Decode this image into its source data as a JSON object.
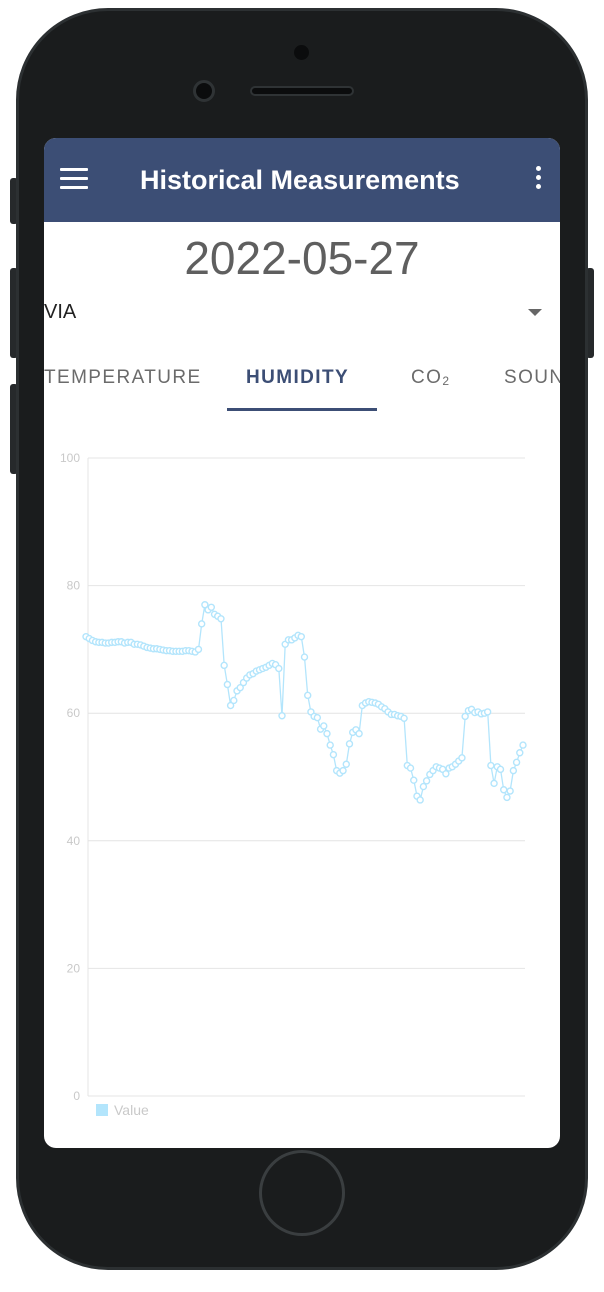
{
  "app": {
    "title": "Historical Measurements",
    "accent_color": "#3c4e75"
  },
  "toolbar": {
    "menu_icon": "hamburger-menu-icon",
    "more_icon": "more-vertical-icon"
  },
  "date": "2022-05-27",
  "location_select": {
    "value": "VIA",
    "icon": "dropdown-arrow-icon"
  },
  "tabs": [
    {
      "label": "TEMPERATURE",
      "active": false
    },
    {
      "label": "HUMIDITY",
      "active": true
    },
    {
      "label": "CO",
      "subscript": "2",
      "active": false
    },
    {
      "label": "SOUN",
      "active": false
    }
  ],
  "chart_data": {
    "type": "line",
    "series_color": "#b3e5fc",
    "ylim": [
      0,
      100
    ],
    "yticks": [
      "100",
      "80",
      "60",
      "40",
      "20",
      "0"
    ],
    "grid": true,
    "legend": {
      "position": "bottom-left",
      "label": "Value"
    },
    "series": [
      {
        "name": "Value",
        "values": [
          72.0,
          71.7,
          71.4,
          71.2,
          71.1,
          71.1,
          71.0,
          71.0,
          71.1,
          71.1,
          71.2,
          71.2,
          71.0,
          71.1,
          71.1,
          70.8,
          70.8,
          70.7,
          70.5,
          70.3,
          70.2,
          70.1,
          70.1,
          70.0,
          69.9,
          69.8,
          69.8,
          69.7,
          69.7,
          69.7,
          69.7,
          69.8,
          69.8,
          69.7,
          69.6,
          70.0,
          74.0,
          77.0,
          76.2,
          76.6,
          75.5,
          75.2,
          74.8,
          67.5,
          64.5,
          61.2,
          62.0,
          63.5,
          64.0,
          64.8,
          65.5,
          66.0,
          66.2,
          66.6,
          66.8,
          67.0,
          67.2,
          67.5,
          67.8,
          67.6,
          67.0,
          59.6,
          70.8,
          71.5,
          71.5,
          71.8,
          72.2,
          72.0,
          68.8,
          62.8,
          60.2,
          59.5,
          59.3,
          57.5,
          58.0,
          56.8,
          55.0,
          53.5,
          51.0,
          50.6,
          51.0,
          52.0,
          55.2,
          57.0,
          57.4,
          56.8,
          61.2,
          61.6,
          61.8,
          61.7,
          61.6,
          61.4,
          61.0,
          60.7,
          60.2,
          59.8,
          59.8,
          59.6,
          59.5,
          59.2,
          51.8,
          51.4,
          49.5,
          47.0,
          46.4,
          48.5,
          49.4,
          50.4,
          51.0,
          51.6,
          51.4,
          51.2,
          50.5,
          51.4,
          51.6,
          52.0,
          52.5,
          53.0,
          59.5,
          60.4,
          60.6,
          60.1,
          60.2,
          59.9,
          60.0,
          60.2,
          51.8,
          49.0,
          51.6,
          51.2,
          48.0,
          46.8,
          47.8,
          51.0,
          52.3,
          53.8,
          55.0
        ]
      }
    ]
  }
}
